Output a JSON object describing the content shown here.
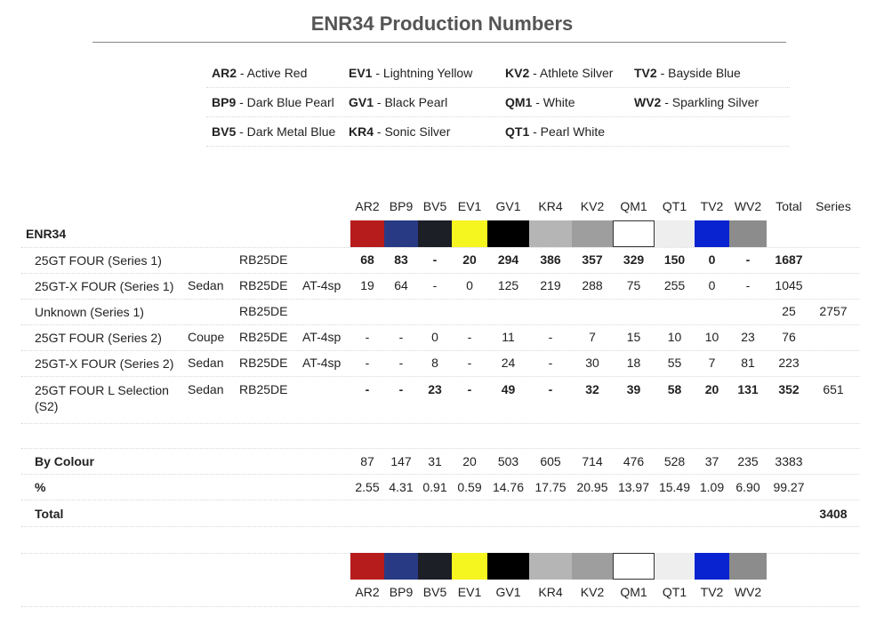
{
  "title": "ENR34 Production Numbers",
  "legend": [
    [
      {
        "code": "AR2",
        "name": " - Active Red"
      },
      {
        "code": "EV1",
        "name": " - Lightning Yellow"
      },
      {
        "code": "KV2",
        "name": " - Athlete Silver"
      },
      {
        "code": "TV2",
        "name": " - Bayside Blue"
      }
    ],
    [
      {
        "code": "BP9",
        "name": " - Dark Blue Pearl"
      },
      {
        "code": "GV1",
        "name": " - Black Pearl"
      },
      {
        "code": "QM1",
        "name": " - White"
      },
      {
        "code": "WV2",
        "name": " - Sparkling Silver"
      }
    ],
    [
      {
        "code": "BV5",
        "name": " - Dark Metal Blue"
      },
      {
        "code": "KR4",
        "name": " - Sonic Silver"
      },
      {
        "code": "QT1",
        "name": " - Pearl White"
      },
      {
        "code": "",
        "name": ""
      }
    ]
  ],
  "colours": [
    {
      "code": "AR2",
      "hex": "#b71c1c"
    },
    {
      "code": "BP9",
      "hex": "#283a84"
    },
    {
      "code": "BV5",
      "hex": "#1c1f26"
    },
    {
      "code": "EV1",
      "hex": "#f5f520"
    },
    {
      "code": "GV1",
      "hex": "#000000"
    },
    {
      "code": "KR4",
      "hex": "#b5b5b5"
    },
    {
      "code": "KV2",
      "hex": "#9e9e9e"
    },
    {
      "code": "QM1",
      "hex": "#ffffff"
    },
    {
      "code": "QT1",
      "hex": "#eeeeee"
    },
    {
      "code": "TV2",
      "hex": "#0a23d1"
    },
    {
      "code": "WV2",
      "hex": "#8c8c8c"
    }
  ],
  "headers": {
    "total": "Total",
    "series": "Series"
  },
  "group_label": "ENR34",
  "rows": [
    {
      "model": "25GT FOUR (Series 1)",
      "body": "",
      "engine": "RB25DE",
      "trans": "",
      "bold": true,
      "values": [
        "68",
        "83",
        "-",
        "20",
        "294",
        "386",
        "357",
        "329",
        "150",
        "0",
        "-"
      ],
      "total": "1687",
      "series": ""
    },
    {
      "model": "25GT-X FOUR (Series 1)",
      "body": "Sedan",
      "engine": "RB25DE",
      "trans": "AT-4sp",
      "bold": false,
      "values": [
        "19",
        "64",
        "-",
        "0",
        "125",
        "219",
        "288",
        "75",
        "255",
        "0",
        "-"
      ],
      "total": "1045",
      "series": ""
    },
    {
      "model": "Unknown (Series 1)",
      "body": "",
      "engine": "RB25DE",
      "trans": "",
      "bold": false,
      "values": [
        "",
        "",
        "",
        "",
        "",
        "",
        "",
        "",
        "",
        "",
        ""
      ],
      "total": "25",
      "series": "2757"
    },
    {
      "model": "25GT FOUR (Series 2)",
      "body": "Coupe",
      "engine": "RB25DE",
      "trans": "AT-4sp",
      "bold": false,
      "values": [
        "-",
        "-",
        "0",
        "-",
        "11",
        "-",
        "7",
        "15",
        "10",
        "10",
        "23"
      ],
      "total": "76",
      "series": ""
    },
    {
      "model": "25GT-X FOUR (Series 2)",
      "body": "Sedan",
      "engine": "RB25DE",
      "trans": "AT-4sp",
      "bold": false,
      "values": [
        "-",
        "-",
        "8",
        "-",
        "24",
        "-",
        "30",
        "18",
        "55",
        "7",
        "81"
      ],
      "total": "223",
      "series": ""
    },
    {
      "model": "25GT FOUR L Selection (S2)",
      "body": "Sedan",
      "engine": "RB25DE",
      "trans": "",
      "bold": true,
      "values": [
        "-",
        "-",
        "23",
        "-",
        "49",
        "-",
        "32",
        "39",
        "58",
        "20",
        "131"
      ],
      "total": "352",
      "series": "651"
    }
  ],
  "by_colour": {
    "label": "By Colour",
    "values": [
      "87",
      "147",
      "31",
      "20",
      "503",
      "605",
      "714",
      "476",
      "528",
      "37",
      "235"
    ],
    "total": "3383"
  },
  "percent": {
    "label": "%",
    "values": [
      "2.55",
      "4.31",
      "0.91",
      "0.59",
      "14.76",
      "17.75",
      "20.95",
      "13.97",
      "15.49",
      "1.09",
      "6.90"
    ],
    "total": "99.27"
  },
  "grand_total": {
    "label": "Total",
    "value": "3408"
  }
}
